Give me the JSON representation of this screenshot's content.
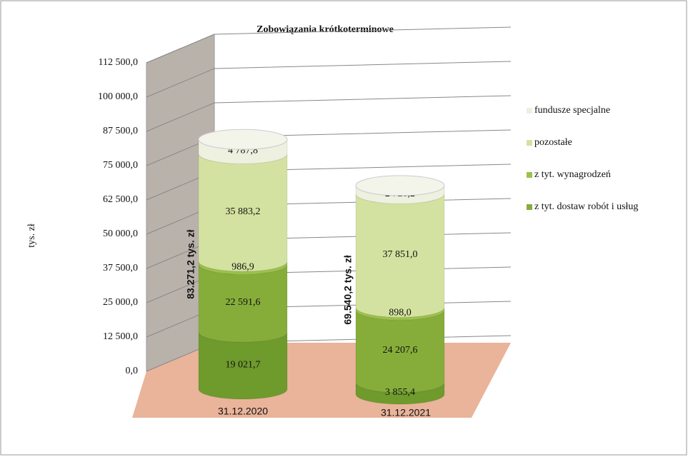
{
  "chart_data": {
    "type": "bar3d_cylinder_stacked",
    "title": "Zobowiązania krótkoterminowe",
    "y_label": "tys. zł",
    "categories": [
      "31.12.2020",
      "31.12.2021"
    ],
    "series": [
      {
        "name": null,
        "color": "#6f9a2c",
        "values": [
          19021.7,
          3855.4
        ],
        "value_labels": [
          "19 021,7",
          "3 855,4"
        ]
      },
      {
        "name": "z tyt. dostaw robót i usług",
        "color": "#86ad3a",
        "values": [
          22591.6,
          24207.6
        ],
        "value_labels": [
          "22 591,6",
          "24 207,6"
        ]
      },
      {
        "name": "z tyt. wynagrodzeń",
        "color": "#9cc24a",
        "values": [
          986.9,
          898.0
        ],
        "value_labels": [
          "986,9",
          "898,0"
        ]
      },
      {
        "name": "pozostałe",
        "color": "#d3e2a0",
        "values": [
          35883.2,
          37851.0
        ],
        "value_labels": [
          "35 883,2",
          "37 851,0"
        ]
      },
      {
        "name": "fundusze specjalne",
        "color": "#eef0e0",
        "values": [
          4787.8,
          2728.2
        ],
        "value_labels": [
          "4 787,8",
          "2 728,2"
        ]
      }
    ],
    "totals": [
      83271.2,
      69540.2
    ],
    "total_labels": [
      "83.271,2 tys. zł",
      "69.540,2 tys. zł"
    ],
    "ylim": [
      0,
      112500
    ],
    "yticks": [
      {
        "value": 0,
        "label": "0,0"
      },
      {
        "value": 12500,
        "label": "12 500,0"
      },
      {
        "value": 25000,
        "label": "25 000,0"
      },
      {
        "value": 37500,
        "label": "37 500,0"
      },
      {
        "value": 50000,
        "label": "50 000,0"
      },
      {
        "value": 62500,
        "label": "62 500,0"
      },
      {
        "value": 75000,
        "label": "75 000,0"
      },
      {
        "value": 87500,
        "label": "87 500,0"
      },
      {
        "value": 100000,
        "label": "100 000,0"
      },
      {
        "value": 112500,
        "label": "112 500,0"
      }
    ],
    "grid": true
  }
}
